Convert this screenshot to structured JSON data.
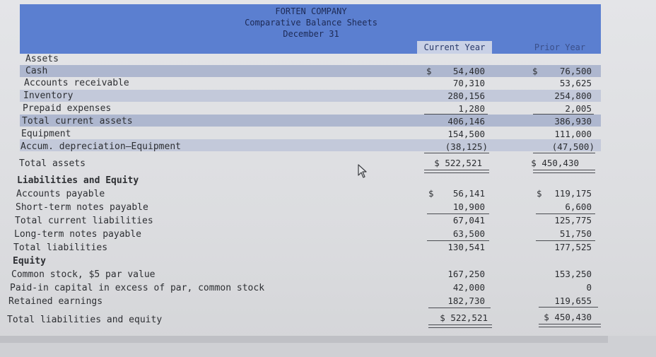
{
  "header": {
    "company": "FORTEN COMPANY",
    "title": "Comparative Balance Sheets",
    "date": "December 31",
    "col_current": "Current Year",
    "col_prior": "Prior Year"
  },
  "assets": {
    "heading": "Assets",
    "rows": [
      {
        "label": "Cash",
        "current": "54,400",
        "prior": "76,500"
      },
      {
        "label": "Accounts receivable",
        "current": "70,310",
        "prior": "53,625"
      },
      {
        "label": "Inventory",
        "current": "280,156",
        "prior": "254,800"
      },
      {
        "label": "Prepaid expenses",
        "current": "1,280",
        "prior": "2,005"
      },
      {
        "label": "Total current assets",
        "current": "406,146",
        "prior": "386,930"
      },
      {
        "label": "Equipment",
        "current": "154,500",
        "prior": "111,000"
      },
      {
        "label": "Accum. depreciation—Equipment",
        "current": "(38,125)",
        "prior": "(47,500)"
      }
    ],
    "total": {
      "label": "Total assets",
      "current": "$ 522,521",
      "prior": "$ 450,430"
    }
  },
  "liabilities": {
    "heading": "Liabilities and Equity",
    "rows": [
      {
        "label": "Accounts payable",
        "current": "56,141",
        "prior": "119,175"
      },
      {
        "label": "Short-term notes payable",
        "current": "10,900",
        "prior": "6,600"
      },
      {
        "label": "Total current liabilities",
        "current": "67,041",
        "prior": "125,775"
      },
      {
        "label": "Long-term notes payable",
        "current": "63,500",
        "prior": "51,750"
      },
      {
        "label": "Total liabilities",
        "current": "130,541",
        "prior": "177,525"
      }
    ]
  },
  "equity": {
    "heading": "Equity",
    "rows": [
      {
        "label": "Common stock, $5 par value",
        "current": "167,250",
        "prior": "153,250"
      },
      {
        "label": "Paid-in capital in excess of par, common stock",
        "current": "42,000",
        "prior": "0"
      },
      {
        "label": "Retained earnings",
        "current": "182,730",
        "prior": "119,655"
      }
    ],
    "total": {
      "label": "Total liabilities and equity",
      "current": "$ 522,521",
      "prior": "$ 450,430"
    }
  },
  "symbols": {
    "dollar": "$"
  },
  "colors": {
    "header_band": "#5b7fd0",
    "row_band": "#aeb7cf"
  }
}
